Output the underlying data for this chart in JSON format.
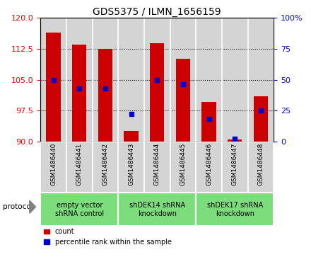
{
  "title": "GDS5375 / ILMN_1656159",
  "samples": [
    "GSM1486440",
    "GSM1486441",
    "GSM1486442",
    "GSM1486443",
    "GSM1486444",
    "GSM1486445",
    "GSM1486446",
    "GSM1486447",
    "GSM1486448"
  ],
  "counts": [
    116.5,
    113.5,
    112.5,
    92.5,
    113.8,
    110.0,
    99.5,
    90.5,
    101.0
  ],
  "percentile_ranks": [
    50,
    43,
    43,
    22,
    50,
    46,
    18,
    2,
    25
  ],
  "ylim_left": [
    90,
    120
  ],
  "yticks_left": [
    90,
    97.5,
    105,
    112.5,
    120
  ],
  "ylim_right": [
    0,
    100
  ],
  "yticks_right": [
    0,
    25,
    50,
    75,
    100
  ],
  "bar_color": "#cc0000",
  "percentile_color": "#0000cc",
  "bar_width": 0.55,
  "groups": [
    {
      "label": "empty vector\nshRNA control",
      "start": 0,
      "end": 2
    },
    {
      "label": "shDEK14 shRNA\nknockdown",
      "start": 3,
      "end": 5
    },
    {
      "label": "shDEK17 shRNA\nknockdown",
      "start": 6,
      "end": 8
    }
  ],
  "group_color": "#7ddd7d",
  "sample_bg_color": "#d4d4d4",
  "protocol_label": "protocol",
  "legend_count_label": "count",
  "legend_percentile_label": "percentile rank within the sample"
}
